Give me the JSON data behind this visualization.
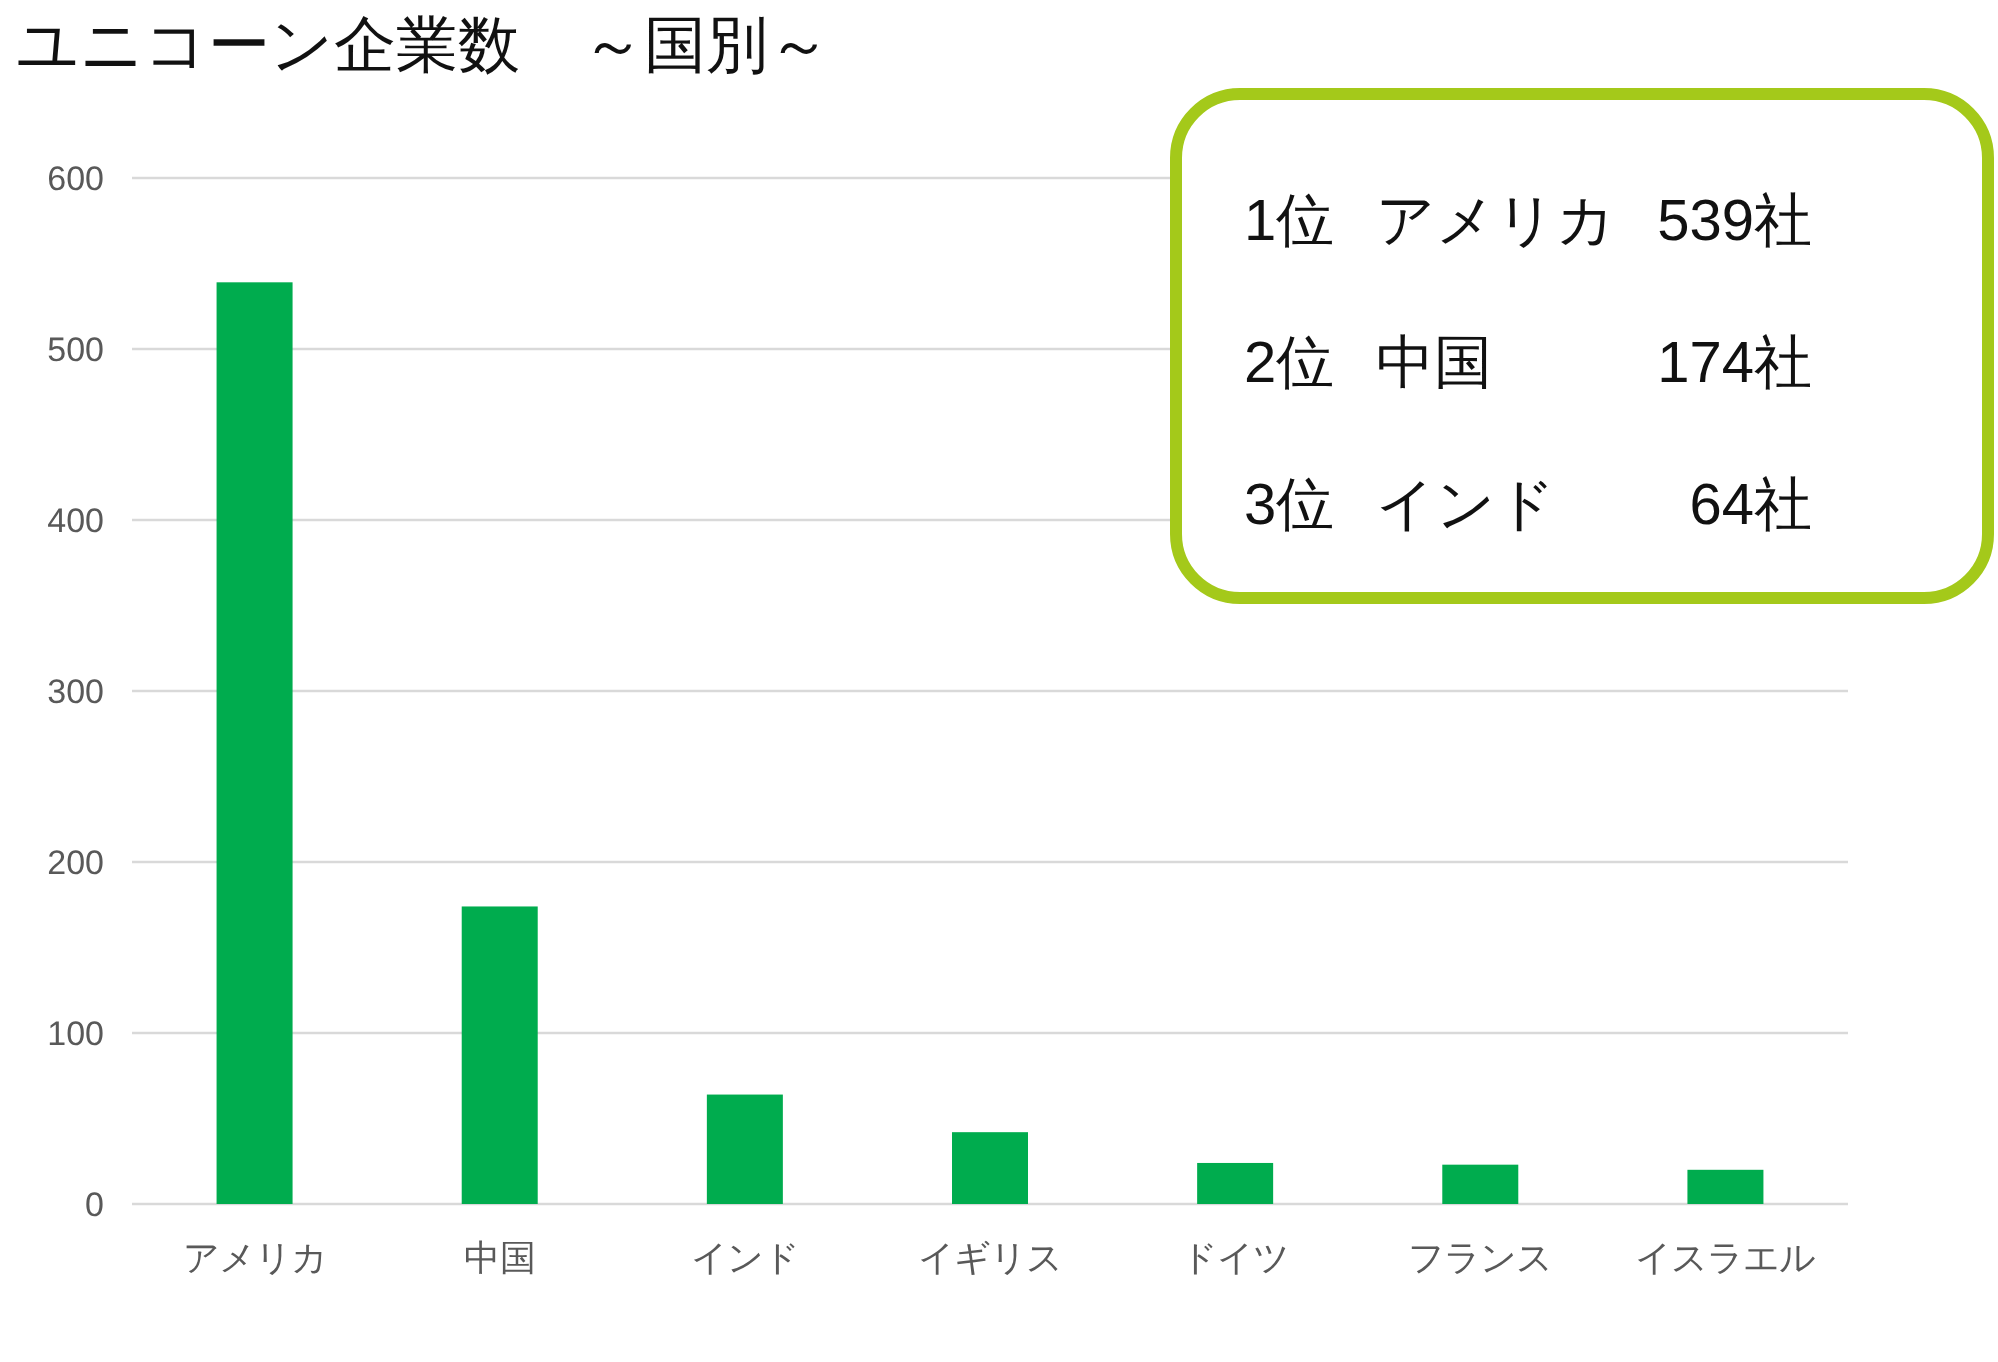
{
  "chart_data": {
    "type": "bar",
    "title": "ユニコーン企業数　～国別～",
    "categories": [
      "アメリカ",
      "中国",
      "インド",
      "イギリス",
      "ドイツ",
      "フランス",
      "イスラエル"
    ],
    "values": [
      539,
      174,
      64,
      42,
      24,
      23,
      20
    ],
    "color": "#00ac4e",
    "ylim": [
      0,
      600
    ],
    "yticks": [
      0,
      100,
      200,
      300,
      400,
      500,
      600
    ],
    "grid": "y",
    "annotations": [
      "1位 アメリカ 539社",
      "2位 中国 174社",
      "3位 インド 64社"
    ]
  }
}
